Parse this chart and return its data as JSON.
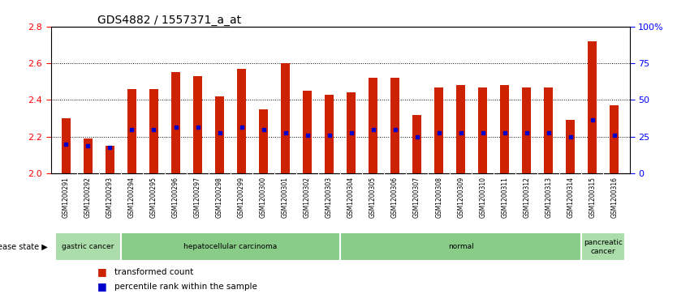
{
  "title": "GDS4882 / 1557371_a_at",
  "samples": [
    "GSM1200291",
    "GSM1200292",
    "GSM1200293",
    "GSM1200294",
    "GSM1200295",
    "GSM1200296",
    "GSM1200297",
    "GSM1200298",
    "GSM1200299",
    "GSM1200300",
    "GSM1200301",
    "GSM1200302",
    "GSM1200303",
    "GSM1200304",
    "GSM1200305",
    "GSM1200306",
    "GSM1200307",
    "GSM1200308",
    "GSM1200309",
    "GSM1200310",
    "GSM1200311",
    "GSM1200312",
    "GSM1200313",
    "GSM1200314",
    "GSM1200315",
    "GSM1200316"
  ],
  "bar_values": [
    2.3,
    2.19,
    2.15,
    2.46,
    2.46,
    2.55,
    2.53,
    2.42,
    2.57,
    2.35,
    2.6,
    2.45,
    2.43,
    2.44,
    2.52,
    2.52,
    2.32,
    2.47,
    2.48,
    2.47,
    2.48,
    2.47,
    2.47,
    2.29,
    2.72,
    2.37
  ],
  "percentile_values": [
    2.16,
    2.15,
    2.14,
    2.24,
    2.24,
    2.25,
    2.25,
    2.22,
    2.25,
    2.24,
    2.22,
    2.21,
    2.21,
    2.22,
    2.24,
    2.24,
    2.2,
    2.22,
    2.22,
    2.22,
    2.22,
    2.22,
    2.22,
    2.2,
    2.29,
    2.21
  ],
  "ylim": [
    2.0,
    2.8
  ],
  "yticks_left": [
    2.0,
    2.2,
    2.4,
    2.6,
    2.8
  ],
  "yticks_right": [
    0,
    25,
    50,
    75,
    100
  ],
  "bar_color": "#cc2200",
  "dot_color": "#0000cc",
  "background_color": "#ffffff",
  "xticklabel_bg": "#dddddd",
  "groups": [
    {
      "label": "gastric cancer",
      "start": 0,
      "end": 3,
      "color": "#aaddaa"
    },
    {
      "label": "hepatocellular carcinoma",
      "start": 3,
      "end": 13,
      "color": "#88cc88"
    },
    {
      "label": "normal",
      "start": 13,
      "end": 24,
      "color": "#88cc88"
    },
    {
      "label": "pancreatic\ncancer",
      "start": 24,
      "end": 26,
      "color": "#aaddaa"
    }
  ],
  "disease_state_label": "disease state",
  "legend_items": [
    {
      "label": "transformed count",
      "color": "#cc2200"
    },
    {
      "label": "percentile rank within the sample",
      "color": "#0000cc"
    }
  ],
  "grid_lines": [
    2.2,
    2.4,
    2.6
  ],
  "bar_width": 0.4
}
